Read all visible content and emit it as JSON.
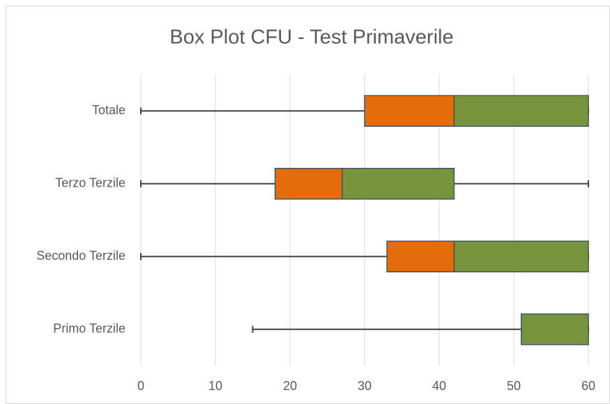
{
  "chart_data": {
    "type": "boxplot",
    "title": "Box Plot CFU - Test Primaverile",
    "categories": [
      "Totale",
      "Terzo Terzile",
      "Secondo Terzile",
      "Primo Terzile"
    ],
    "min": [
      0,
      0,
      0,
      15
    ],
    "q1": [
      30,
      18,
      33,
      51
    ],
    "median": [
      42,
      27,
      42,
      51
    ],
    "q3": [
      60,
      42,
      60,
      60
    ],
    "max": [
      60,
      60,
      60,
      60
    ],
    "lower_box_color": "#e46c0a",
    "upper_box_color": "#77933c",
    "whisker_color": "#404040",
    "xlim": [
      0,
      60
    ],
    "xticks": [
      0,
      10,
      20,
      30,
      40,
      50,
      60
    ],
    "grid": true
  }
}
